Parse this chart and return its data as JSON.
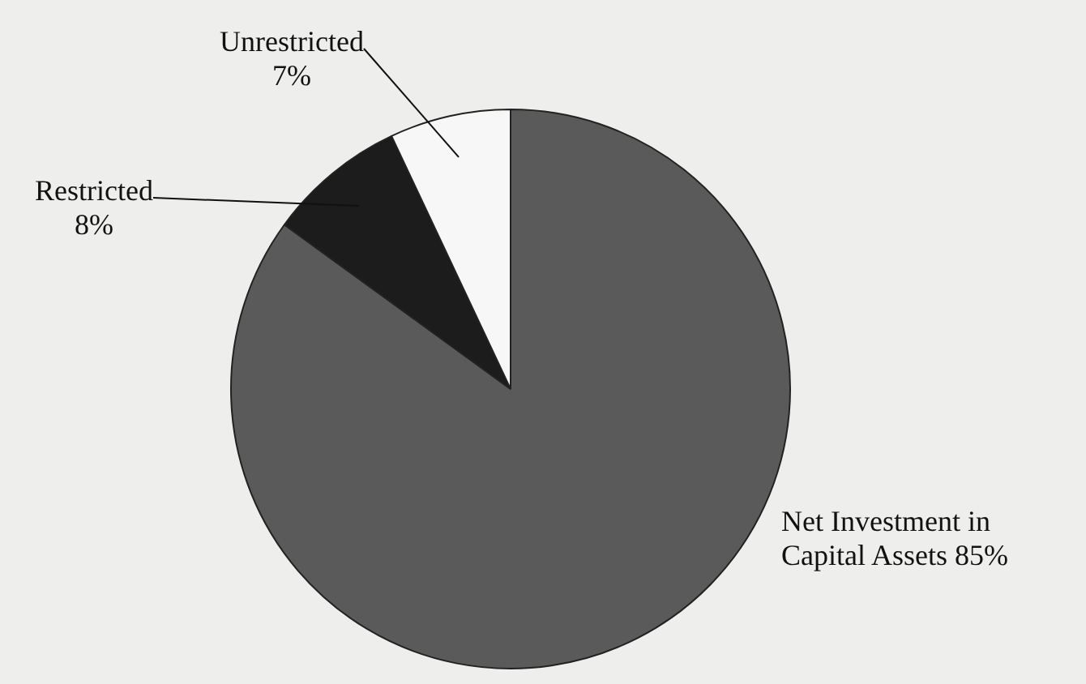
{
  "chart_data": {
    "type": "pie",
    "categories": [
      "Net Investment in Capital Assets",
      "Restricted",
      "Unrestricted"
    ],
    "values": [
      85,
      8,
      7
    ],
    "value_labels": [
      "85%",
      "8%",
      "7%"
    ],
    "colors": [
      "#5a5a5a",
      "#1c1c1c",
      "#f7f7f7"
    ],
    "legend": false
  }
}
